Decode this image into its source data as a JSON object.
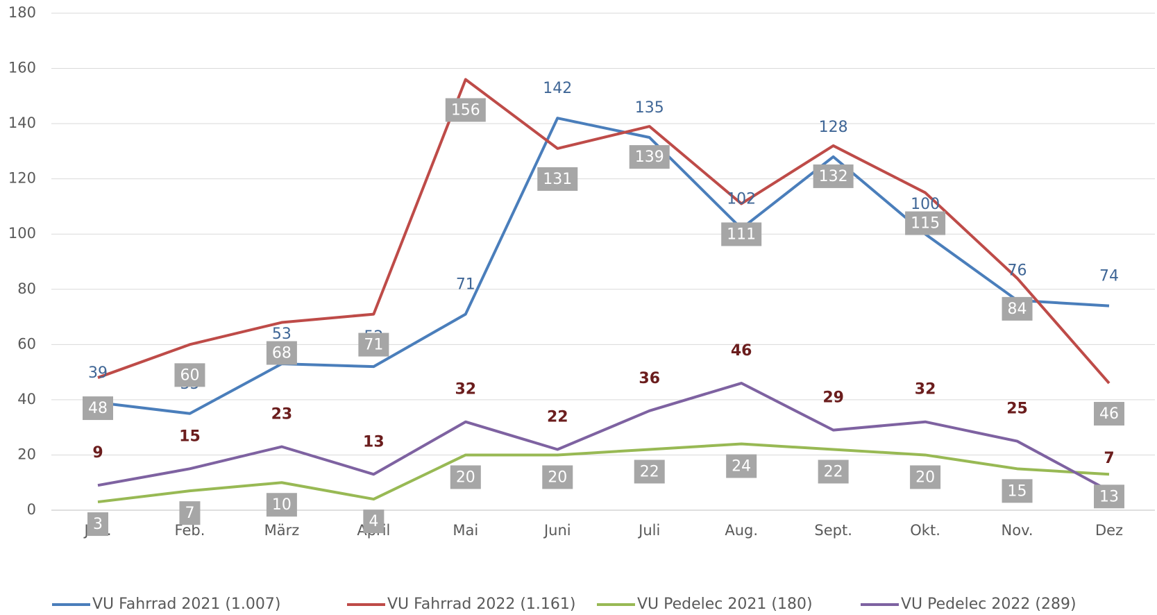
{
  "chart_data": {
    "type": "line",
    "categories": [
      "Jan.",
      "Feb.",
      "März",
      "April",
      "Mai",
      "Juni",
      "Juli",
      "Aug.",
      "Sept.",
      "Okt.",
      "Nov.",
      "Dez"
    ],
    "series": [
      {
        "name": "VU Fahrrad 2021 (1.007)",
        "color": "#4a7ebb",
        "values": [
          39,
          35,
          53,
          52,
          71,
          142,
          135,
          102,
          128,
          100,
          76,
          74
        ]
      },
      {
        "name": "VU Fahrrad 2022 (1.161)",
        "color": "#be4b48",
        "values": [
          48,
          60,
          68,
          71,
          156,
          131,
          139,
          111,
          132,
          115,
          84,
          46
        ]
      },
      {
        "name": "VU Pedelec 2021 (180)",
        "color": "#98b954",
        "values": [
          3,
          7,
          10,
          4,
          20,
          20,
          22,
          24,
          22,
          20,
          15,
          13
        ]
      },
      {
        "name": "VU Pedelec 2022 (289)",
        "color": "#7e62a1",
        "values": [
          9,
          15,
          23,
          13,
          32,
          22,
          36,
          46,
          29,
          32,
          25,
          7
        ]
      }
    ],
    "ylim": [
      0,
      180
    ],
    "yticks": [
      0,
      20,
      40,
      60,
      80,
      100,
      120,
      140,
      160,
      180
    ],
    "grid": true,
    "legend": "bottom"
  }
}
